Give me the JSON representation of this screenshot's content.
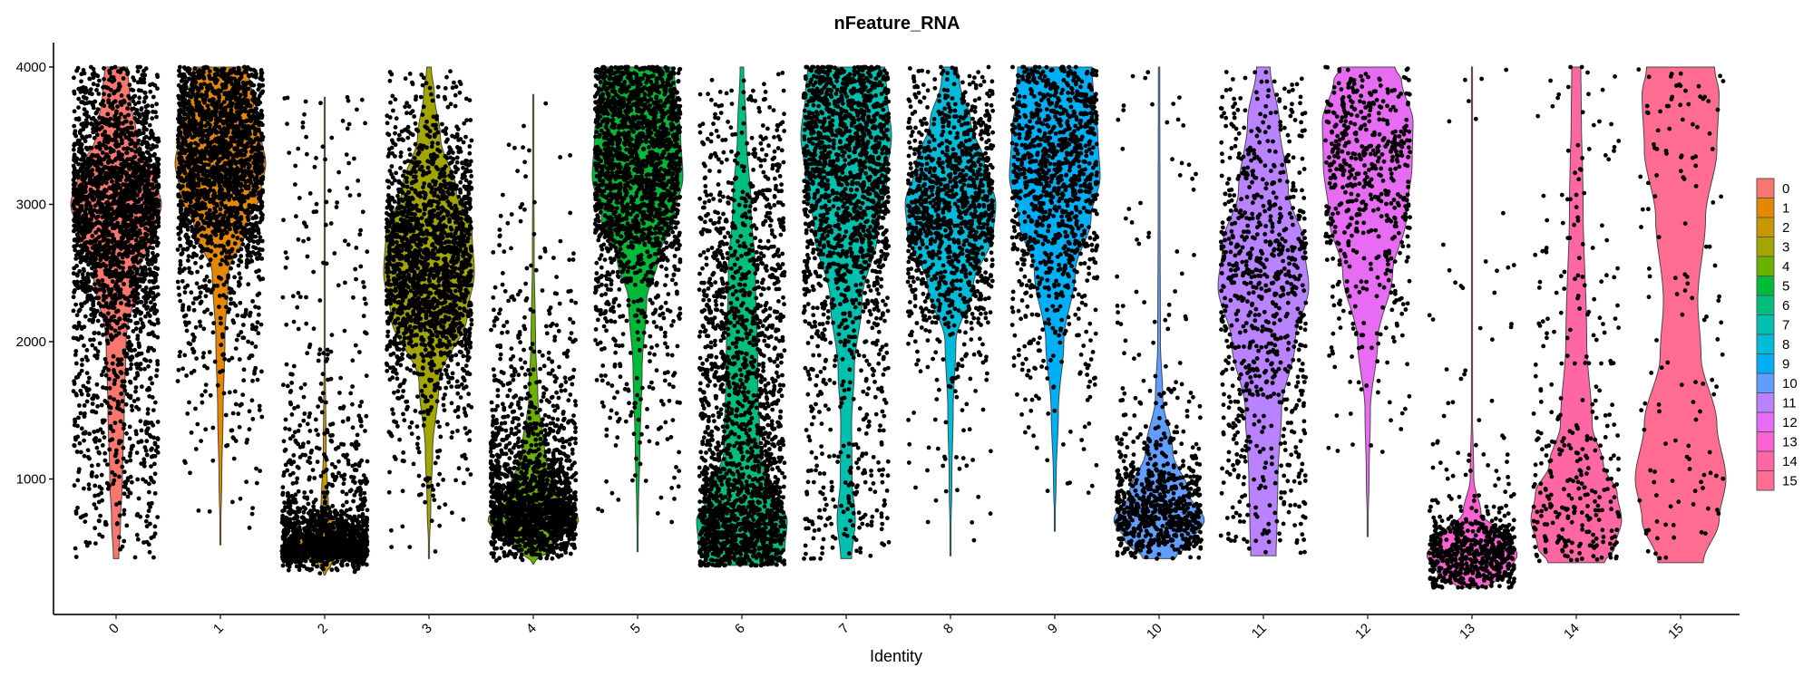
{
  "chart_data": {
    "type": "violin",
    "title": "nFeature_RNA",
    "xlabel": "Identity",
    "ylabel": "",
    "ylim": [
      0,
      4100
    ],
    "yticks": [
      1000,
      2000,
      3000,
      4000
    ],
    "grid": false,
    "legend_position": "right",
    "categories": [
      "0",
      "1",
      "2",
      "3",
      "4",
      "5",
      "6",
      "7",
      "8",
      "9",
      "10",
      "11",
      "12",
      "13",
      "14",
      "15"
    ],
    "legend": [
      {
        "label": "0",
        "color": "#F8766D"
      },
      {
        "label": "1",
        "color": "#E58700"
      },
      {
        "label": "2",
        "color": "#C99800"
      },
      {
        "label": "3",
        "color": "#A3A500"
      },
      {
        "label": "4",
        "color": "#6BB100"
      },
      {
        "label": "5",
        "color": "#00BA38"
      },
      {
        "label": "6",
        "color": "#00BF7D"
      },
      {
        "label": "7",
        "color": "#00C0AF"
      },
      {
        "label": "8",
        "color": "#00BCD8"
      },
      {
        "label": "9",
        "color": "#00B0F6"
      },
      {
        "label": "10",
        "color": "#619CFF"
      },
      {
        "label": "11",
        "color": "#B983FF"
      },
      {
        "label": "12",
        "color": "#E76BF3"
      },
      {
        "label": "13",
        "color": "#FD61D1"
      },
      {
        "label": "14",
        "color": "#FF67A4"
      },
      {
        "label": "15",
        "color": "#FF6C91"
      }
    ],
    "series": [
      {
        "name": "0",
        "color": "#F8766D",
        "min": 420,
        "max": 4000,
        "n_points": 4500,
        "profile": [
          [
            420,
            0.06
          ],
          [
            700,
            0.1
          ],
          [
            1000,
            0.14
          ],
          [
            1500,
            0.18
          ],
          [
            2000,
            0.22
          ],
          [
            2500,
            0.5
          ],
          [
            2800,
            0.85
          ],
          [
            3000,
            1.0
          ],
          [
            3200,
            0.85
          ],
          [
            3500,
            0.45
          ],
          [
            3800,
            0.3
          ],
          [
            4000,
            0.25
          ]
        ]
      },
      {
        "name": "1",
        "color": "#E58700",
        "min": 520,
        "max": 4000,
        "n_points": 3800,
        "profile": [
          [
            520,
            0.0
          ],
          [
            1000,
            0.03
          ],
          [
            1500,
            0.06
          ],
          [
            2000,
            0.1
          ],
          [
            2500,
            0.18
          ],
          [
            2800,
            0.55
          ],
          [
            3100,
            0.9
          ],
          [
            3300,
            1.0
          ],
          [
            3500,
            0.9
          ],
          [
            3800,
            0.7
          ],
          [
            4000,
            0.6
          ]
        ]
      },
      {
        "name": "2",
        "color": "#C99800",
        "min": 300,
        "max": 3780,
        "n_points": 3000,
        "profile": [
          [
            300,
            0.0
          ],
          [
            380,
            0.15
          ],
          [
            480,
            1.0
          ],
          [
            600,
            0.4
          ],
          [
            800,
            0.08
          ],
          [
            1200,
            0.03
          ],
          [
            2000,
            0.01
          ],
          [
            3780,
            0.01
          ]
        ]
      },
      {
        "name": "3",
        "color": "#A3A500",
        "min": 420,
        "max": 4000,
        "n_points": 3500,
        "profile": [
          [
            420,
            0.0
          ],
          [
            800,
            0.04
          ],
          [
            1200,
            0.08
          ],
          [
            1700,
            0.22
          ],
          [
            2200,
            0.85
          ],
          [
            2500,
            1.0
          ],
          [
            2800,
            0.95
          ],
          [
            3100,
            0.6
          ],
          [
            3500,
            0.25
          ],
          [
            3800,
            0.12
          ],
          [
            4000,
            0.05
          ]
        ]
      },
      {
        "name": "4",
        "color": "#6BB100",
        "min": 380,
        "max": 3800,
        "n_points": 3200,
        "profile": [
          [
            380,
            0.0
          ],
          [
            500,
            0.4
          ],
          [
            700,
            1.0
          ],
          [
            900,
            0.55
          ],
          [
            1200,
            0.25
          ],
          [
            1600,
            0.1
          ],
          [
            2000,
            0.05
          ],
          [
            2600,
            0.02
          ],
          [
            3800,
            0.0
          ]
        ]
      },
      {
        "name": "5",
        "color": "#00BA38",
        "min": 470,
        "max": 4000,
        "n_points": 3600,
        "profile": [
          [
            470,
            0.0
          ],
          [
            800,
            0.02
          ],
          [
            1200,
            0.05
          ],
          [
            1800,
            0.1
          ],
          [
            2300,
            0.2
          ],
          [
            2600,
            0.45
          ],
          [
            2900,
            0.8
          ],
          [
            3200,
            1.0
          ],
          [
            3500,
            0.95
          ],
          [
            3800,
            0.85
          ],
          [
            4000,
            0.8
          ]
        ]
      },
      {
        "name": "6",
        "color": "#00BF7D",
        "min": 370,
        "max": 4000,
        "n_points": 3800,
        "profile": [
          [
            370,
            0.75
          ],
          [
            500,
            0.95
          ],
          [
            700,
            1.0
          ],
          [
            900,
            0.7
          ],
          [
            1200,
            0.4
          ],
          [
            1800,
            0.35
          ],
          [
            2500,
            0.3
          ],
          [
            3000,
            0.2
          ],
          [
            3500,
            0.1
          ],
          [
            4000,
            0.04
          ]
        ]
      },
      {
        "name": "7",
        "color": "#00C0AF",
        "min": 420,
        "max": 4000,
        "n_points": 3200,
        "profile": [
          [
            420,
            0.12
          ],
          [
            700,
            0.2
          ],
          [
            1000,
            0.13
          ],
          [
            1400,
            0.12
          ],
          [
            1800,
            0.18
          ],
          [
            2300,
            0.35
          ],
          [
            2800,
            0.7
          ],
          [
            3200,
            0.9
          ],
          [
            3500,
            1.0
          ],
          [
            3800,
            0.9
          ],
          [
            4000,
            0.85
          ]
        ]
      },
      {
        "name": "8",
        "color": "#00BCD8",
        "min": 440,
        "max": 4000,
        "n_points": 2200,
        "profile": [
          [
            440,
            0.0
          ],
          [
            1000,
            0.03
          ],
          [
            1500,
            0.06
          ],
          [
            2000,
            0.12
          ],
          [
            2400,
            0.5
          ],
          [
            2800,
            0.95
          ],
          [
            3000,
            1.0
          ],
          [
            3300,
            0.75
          ],
          [
            3600,
            0.45
          ],
          [
            3900,
            0.2
          ],
          [
            4000,
            0.15
          ]
        ]
      },
      {
        "name": "9",
        "color": "#00B0F6",
        "min": 620,
        "max": 4000,
        "n_points": 2000,
        "profile": [
          [
            620,
            0.0
          ],
          [
            1000,
            0.03
          ],
          [
            1500,
            0.08
          ],
          [
            2000,
            0.2
          ],
          [
            2500,
            0.45
          ],
          [
            2900,
            0.8
          ],
          [
            3200,
            1.0
          ],
          [
            3500,
            0.95
          ],
          [
            3800,
            0.85
          ],
          [
            4000,
            0.82
          ]
        ]
      },
      {
        "name": "10",
        "color": "#619CFF",
        "min": 420,
        "max": 4000,
        "n_points": 1400,
        "profile": [
          [
            420,
            0.35
          ],
          [
            550,
            0.75
          ],
          [
            700,
            1.0
          ],
          [
            900,
            0.65
          ],
          [
            1200,
            0.3
          ],
          [
            1600,
            0.08
          ],
          [
            2000,
            0.03
          ],
          [
            3000,
            0.02
          ],
          [
            4000,
            0.015
          ]
        ]
      },
      {
        "name": "11",
        "color": "#B983FF",
        "min": 440,
        "max": 4000,
        "n_points": 1500,
        "profile": [
          [
            440,
            0.28
          ],
          [
            700,
            0.3
          ],
          [
            1000,
            0.32
          ],
          [
            1500,
            0.4
          ],
          [
            2000,
            0.7
          ],
          [
            2400,
            1.0
          ],
          [
            2700,
            0.9
          ],
          [
            3100,
            0.55
          ],
          [
            3600,
            0.35
          ],
          [
            4000,
            0.15
          ]
        ]
      },
      {
        "name": "12",
        "color": "#E76BF3",
        "min": 580,
        "max": 4000,
        "n_points": 1000,
        "profile": [
          [
            580,
            0.0
          ],
          [
            1000,
            0.03
          ],
          [
            1500,
            0.06
          ],
          [
            2000,
            0.22
          ],
          [
            2500,
            0.55
          ],
          [
            2900,
            0.85
          ],
          [
            3300,
            0.98
          ],
          [
            3600,
            1.0
          ],
          [
            3900,
            0.75
          ],
          [
            4000,
            0.6
          ]
        ]
      },
      {
        "name": "13",
        "color": "#FD61D1",
        "min": 210,
        "max": 4000,
        "n_points": 1200,
        "profile": [
          [
            210,
            0.3
          ],
          [
            300,
            0.75
          ],
          [
            450,
            1.0
          ],
          [
            600,
            0.65
          ],
          [
            750,
            0.2
          ],
          [
            1000,
            0.04
          ],
          [
            1500,
            0.01
          ],
          [
            4000,
            0.005
          ]
        ]
      },
      {
        "name": "14",
        "color": "#FF67A4",
        "min": 390,
        "max": 4000,
        "n_points": 600,
        "profile": [
          [
            390,
            0.62
          ],
          [
            500,
            0.85
          ],
          [
            700,
            1.0
          ],
          [
            900,
            0.9
          ],
          [
            1100,
            0.6
          ],
          [
            1400,
            0.35
          ],
          [
            2000,
            0.23
          ],
          [
            3000,
            0.15
          ],
          [
            3700,
            0.11
          ],
          [
            4000,
            0.1
          ]
        ]
      },
      {
        "name": "15",
        "color": "#FF6C91",
        "min": 390,
        "max": 4000,
        "n_points": 250,
        "profile": [
          [
            390,
            0.5
          ],
          [
            700,
            0.85
          ],
          [
            1000,
            1.0
          ],
          [
            1400,
            0.8
          ],
          [
            1900,
            0.45
          ],
          [
            2300,
            0.38
          ],
          [
            2900,
            0.55
          ],
          [
            3400,
            0.8
          ],
          [
            3800,
            0.85
          ],
          [
            4000,
            0.75
          ]
        ]
      }
    ]
  }
}
